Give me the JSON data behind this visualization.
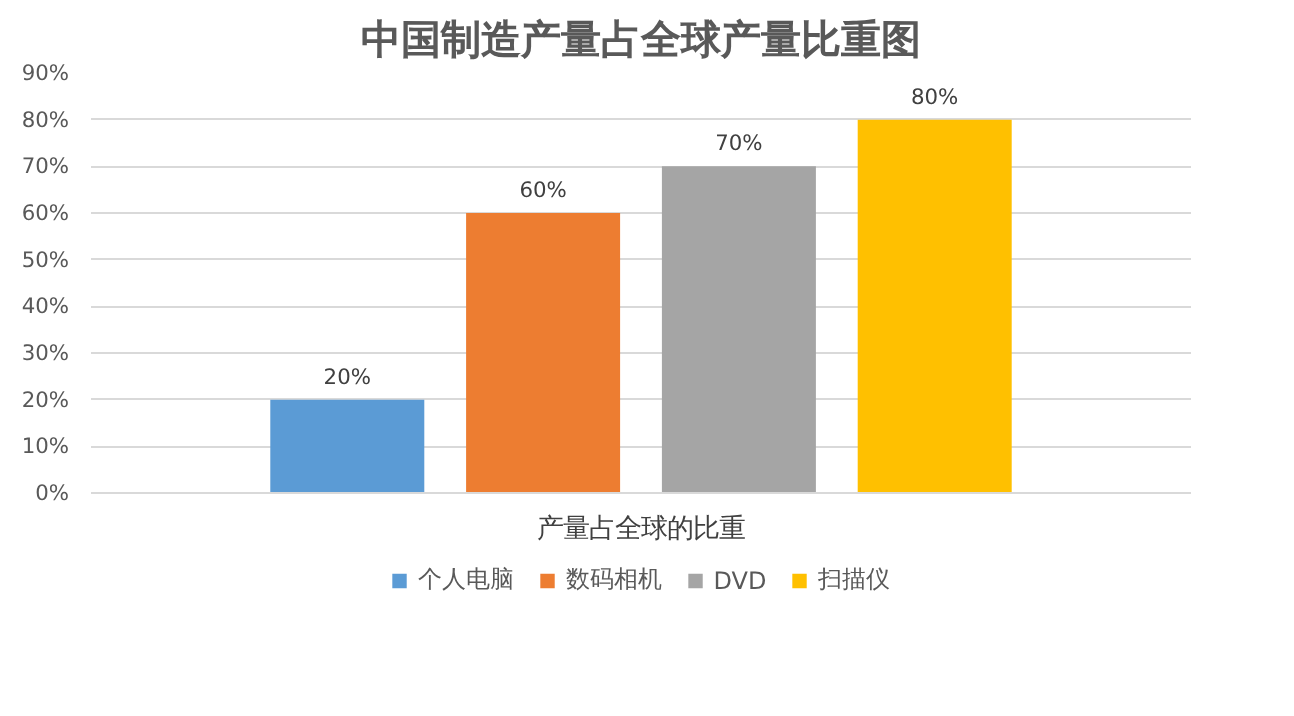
{
  "chart_data": {
    "type": "bar",
    "title": "中国制造产量占全球产量比重图",
    "categories": [
      "产量占全球的比重"
    ],
    "series": [
      {
        "name": "个人电脑",
        "color": "#5b9bd5",
        "values": [
          20
        ],
        "value_labels": [
          "20%"
        ]
      },
      {
        "name": "数码相机",
        "color": "#ed7d31",
        "values": [
          60
        ],
        "value_labels": [
          "60%"
        ]
      },
      {
        "name": "DVD",
        "color": "#a5a5a5",
        "values": [
          70
        ],
        "value_labels": [
          "70%"
        ]
      },
      {
        "name": "扫描仪",
        "color": "#ffc000",
        "values": [
          80
        ],
        "value_labels": [
          "80%"
        ]
      }
    ],
    "ylim": [
      0,
      90
    ],
    "yticks": [
      {
        "value": 0,
        "label": "0%"
      },
      {
        "value": 10,
        "label": "10%"
      },
      {
        "value": 20,
        "label": "20%"
      },
      {
        "value": 30,
        "label": "30%"
      },
      {
        "value": 40,
        "label": "40%"
      },
      {
        "value": 50,
        "label": "50%"
      },
      {
        "value": 60,
        "label": "60%"
      },
      {
        "value": 70,
        "label": "70%"
      },
      {
        "value": 80,
        "label": "80%"
      },
      {
        "value": 90,
        "label": "90%"
      }
    ],
    "grid": "y",
    "legend": "bottom"
  }
}
